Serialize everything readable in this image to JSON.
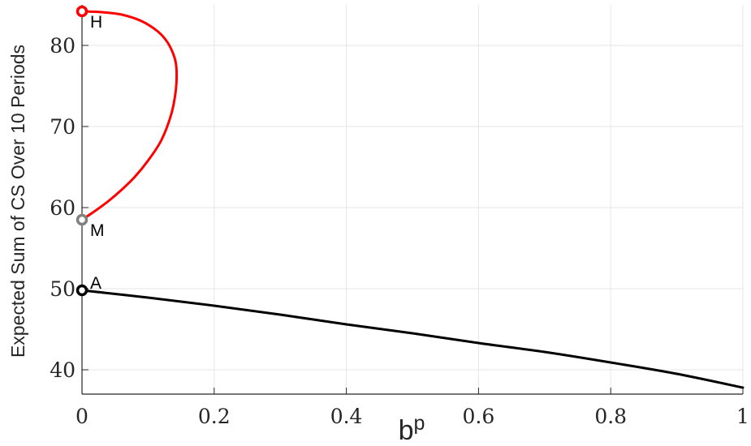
{
  "chart_data": {
    "type": "line",
    "xlabel": "b",
    "xlabel_superscript": "p",
    "ylabel": "Expected Sum of CS Over 10 Periods",
    "xlim": [
      0,
      1
    ],
    "ylim": [
      37,
      85
    ],
    "x_ticks": [
      0,
      0.2,
      0.4,
      0.6,
      0.8,
      1
    ],
    "x_tick_labels": [
      "0",
      "0.2",
      "0.4",
      "0.6",
      "0.8",
      "1"
    ],
    "y_ticks": [
      40,
      50,
      60,
      70,
      80
    ],
    "y_tick_labels": [
      "40",
      "50",
      "60",
      "70",
      "80"
    ],
    "grid": true,
    "series": [
      {
        "color": "#ff0000",
        "points": [
          [
            0.0,
            58.5
          ],
          [
            0.02,
            59.6
          ],
          [
            0.04,
            60.8
          ],
          [
            0.06,
            62.2
          ],
          [
            0.08,
            63.8
          ],
          [
            0.1,
            65.8
          ],
          [
            0.12,
            68.3
          ],
          [
            0.135,
            71.5
          ],
          [
            0.142,
            74.5
          ],
          [
            0.143,
            77.0
          ],
          [
            0.14,
            78.5
          ],
          [
            0.13,
            80.3
          ],
          [
            0.115,
            81.7
          ],
          [
            0.09,
            83.0
          ],
          [
            0.06,
            83.8
          ],
          [
            0.03,
            84.1
          ],
          [
            0.0,
            84.2
          ]
        ]
      },
      {
        "color": "#000000",
        "points": [
          [
            0.0,
            49.8
          ],
          [
            0.1,
            48.9
          ],
          [
            0.2,
            47.9
          ],
          [
            0.3,
            46.8
          ],
          [
            0.4,
            45.6
          ],
          [
            0.5,
            44.5
          ],
          [
            0.6,
            43.3
          ],
          [
            0.7,
            42.2
          ],
          [
            0.8,
            40.9
          ],
          [
            0.9,
            39.5
          ],
          [
            1.0,
            37.8
          ]
        ]
      }
    ],
    "markers": [
      {
        "label": "H",
        "x": 0,
        "y": 84.2,
        "color": "#ff0000"
      },
      {
        "label": "M",
        "x": 0,
        "y": 58.5,
        "color": "#808080"
      },
      {
        "label": "A",
        "x": 0,
        "y": 49.8,
        "color": "#000000"
      }
    ],
    "gridline_color": "#e6e6e6",
    "axis_color": "#262626"
  }
}
